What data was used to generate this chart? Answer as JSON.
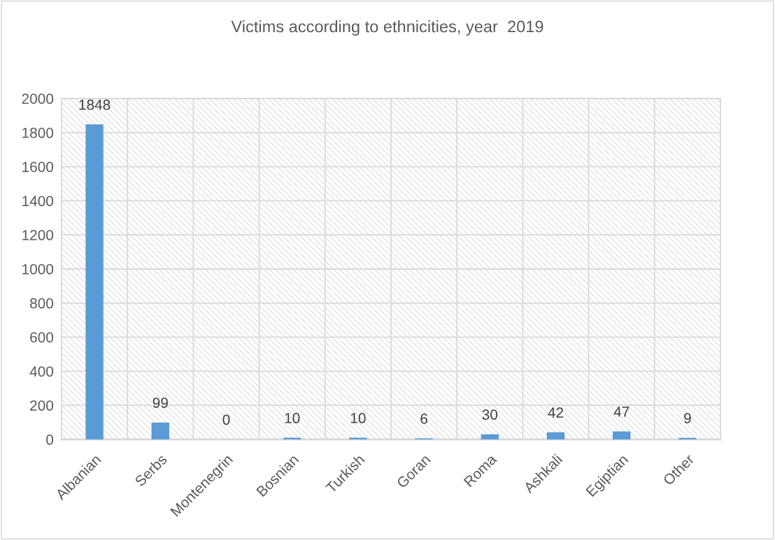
{
  "chart_data": {
    "type": "bar",
    "title": "Victims according to ethnicities, year  2019",
    "categories": [
      "Albanian",
      "Serbs",
      "Montenegrin",
      "Bosnian",
      "Turkish",
      "Goran",
      "Roma",
      "Ashkali",
      "Egiptian",
      "Other"
    ],
    "values": [
      1848,
      99,
      0,
      10,
      10,
      6,
      30,
      42,
      47,
      9
    ],
    "color": "#5b9bd5",
    "ylim": [
      0,
      2000
    ],
    "yticks": [
      0,
      200,
      400,
      600,
      800,
      1000,
      1200,
      1400,
      1600,
      1800,
      2000
    ],
    "grid": true,
    "data_labels": true,
    "legend": false
  }
}
